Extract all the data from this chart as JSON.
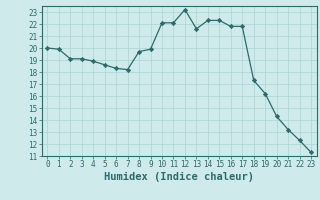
{
  "xlabel": "Humidex (Indice chaleur)",
  "x": [
    0,
    1,
    2,
    3,
    4,
    5,
    6,
    7,
    8,
    9,
    10,
    11,
    12,
    13,
    14,
    15,
    16,
    17,
    18,
    19,
    20,
    21,
    22,
    23
  ],
  "y": [
    20.0,
    19.9,
    19.1,
    19.1,
    18.9,
    18.6,
    18.3,
    18.2,
    19.7,
    19.9,
    22.1,
    22.1,
    23.2,
    21.6,
    22.3,
    22.3,
    21.8,
    21.8,
    17.3,
    16.2,
    14.3,
    13.2,
    12.3,
    11.3
  ],
  "ylim": [
    11,
    23.5
  ],
  "yticks": [
    11,
    12,
    13,
    14,
    15,
    16,
    17,
    18,
    19,
    20,
    21,
    22,
    23
  ],
  "xticks": [
    0,
    1,
    2,
    3,
    4,
    5,
    6,
    7,
    8,
    9,
    10,
    11,
    12,
    13,
    14,
    15,
    16,
    17,
    18,
    19,
    20,
    21,
    22,
    23
  ],
  "line_color": "#2d6b6b",
  "marker": "D",
  "marker_size": 2.2,
  "bg_color": "#ceeaea",
  "grid_color": "#aad4d4",
  "tick_fontsize": 5.5,
  "xlabel_fontsize": 7.5
}
